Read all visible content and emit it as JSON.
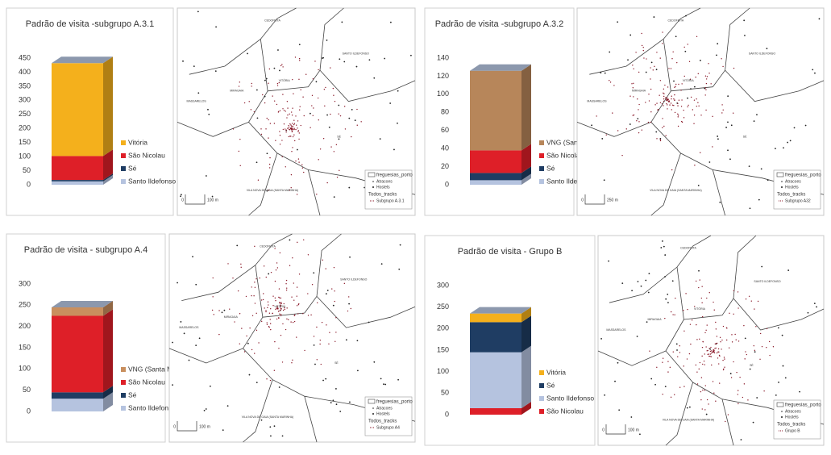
{
  "chart_data": [
    {
      "type": "bar3d",
      "title": "Padrão de visita -subgrupo A.3.1",
      "categories": [
        "Subgrupo A.3.1"
      ],
      "ylim": [
        0,
        450
      ],
      "yticks": [
        0,
        50,
        100,
        150,
        200,
        250,
        300,
        350,
        400,
        450
      ],
      "series": [
        {
          "name": "Vitória",
          "color": "#f4b01c",
          "values": [
            330
          ]
        },
        {
          "name": "São Nicolau",
          "color": "#de1f28",
          "values": [
            85
          ]
        },
        {
          "name": "Sé",
          "color": "#1f3d63",
          "values": [
            5
          ]
        },
        {
          "name": "Santo Ildefonso",
          "color": "#b5c3df",
          "values": [
            12
          ]
        }
      ]
    },
    {
      "type": "bar3d",
      "title": "Padrão de visita -subgrupo A.3.2",
      "categories": [
        "Subgrupo A.3.2"
      ],
      "ylim": [
        0,
        140
      ],
      "yticks": [
        0,
        20,
        40,
        60,
        80,
        100,
        120,
        140
      ],
      "series": [
        {
          "name": "VNG (Santa Marinha)",
          "color": "#b7865a",
          "values": [
            88
          ]
        },
        {
          "name": "São Nicolau",
          "color": "#de1f28",
          "values": [
            25
          ]
        },
        {
          "name": "Sé",
          "color": "#1f3d63",
          "values": [
            8
          ]
        },
        {
          "name": "Santo Ildefonso",
          "color": "#b5c3df",
          "values": [
            5
          ]
        }
      ]
    },
    {
      "type": "bar3d",
      "title": "Padrão de visita - subgrupo A.4",
      "categories": [
        "Subgrupo A.4"
      ],
      "ylim": [
        0,
        300
      ],
      "yticks": [
        0,
        50,
        100,
        150,
        200,
        250,
        300
      ],
      "series": [
        {
          "name": "VNG (Santa Marinha)",
          "color": "#c98f5e",
          "values": [
            20
          ]
        },
        {
          "name": "São Nicolau",
          "color": "#de1f28",
          "values": [
            180
          ]
        },
        {
          "name": "Sé",
          "color": "#1f3d63",
          "values": [
            15
          ]
        },
        {
          "name": "Santo Ildefonso",
          "color": "#b5c3df",
          "values": [
            30
          ]
        }
      ]
    },
    {
      "type": "bar3d",
      "title": "Padrão de visita - Grupo B",
      "categories": [
        "Grupo B"
      ],
      "ylim": [
        0,
        300
      ],
      "yticks": [
        0,
        50,
        100,
        150,
        200,
        250,
        300
      ],
      "series": [
        {
          "name": "Vitória",
          "color": "#f4b01c",
          "values": [
            20
          ]
        },
        {
          "name": "Sé",
          "color": "#1f3d63",
          "values": [
            70
          ]
        },
        {
          "name": "Santo Ildefonso",
          "color": "#b5c3df",
          "values": [
            130
          ]
        },
        {
          "name": "São Nicolau",
          "color": "#de1f28",
          "values": [
            15
          ]
        }
      ]
    }
  ],
  "maps": [
    {
      "places": [
        "CEDOFEITA",
        "SANTO ILDEFONSO",
        "MASSARELOS",
        "MIRAGAIA",
        "VITÓRIA",
        "SÉ",
        "VILA NOVA DE GAIA (SANTA MARINHA)"
      ],
      "legend": [
        "freguesias_porto",
        "Atracoes",
        "Hostels",
        "Todos_tracks",
        "Subgrupo A.3.1"
      ],
      "scale": [
        "0",
        "100 m"
      ]
    },
    {
      "places": [
        "CEDOFEITA",
        "SANTO ILDEFONSO",
        "MASSARELOS",
        "MIRAGAIA",
        "VITÓRIA",
        "SÉ",
        "VILA NOVA DE GAIA (SANTA MARINHA)"
      ],
      "legend": [
        "freguesias_porto",
        "Atracoes",
        "Hostels",
        "Todos_tracks",
        "Subgrupo A32"
      ],
      "scale": [
        "0",
        "250 m"
      ]
    },
    {
      "places": [
        "CEDOFEITA",
        "SANTO ILDEFONSO",
        "MASSARELOS",
        "MIRAGAIA",
        "VITÓRIA",
        "SÉ",
        "VILA NOVA DE GAIA (SANTA MARINHA)"
      ],
      "legend": [
        "freguesias_porto",
        "Atracoes",
        "Hostels",
        "Todos_tracks",
        "Subgrupo A4"
      ],
      "scale": [
        "0",
        "100 m"
      ]
    },
    {
      "places": [
        "CEDOFEITA",
        "SANTO ILDEFONSO",
        "MASSARELOS",
        "MIRAGAIA",
        "VITÓRIA",
        "SÉ",
        "VILA NOVA DE GAIA (SANTA MARINHA)"
      ],
      "legend": [
        "freguesias_porto",
        "Atracoes",
        "Hostels",
        "Todos_tracks",
        "Grupo B"
      ],
      "scale": [
        "0",
        "100 m"
      ]
    }
  ]
}
